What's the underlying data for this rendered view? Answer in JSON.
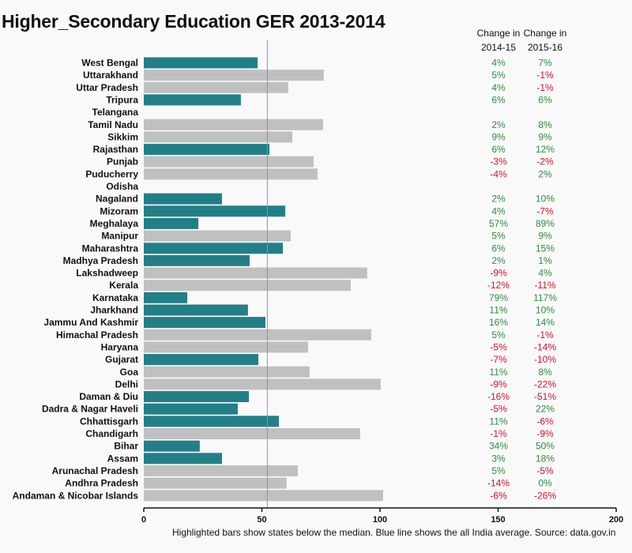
{
  "chart_data": {
    "type": "bar",
    "orientation": "horizontal",
    "title": "Higher_Secondary Education GER 2013-2014",
    "xlabel": "",
    "ylabel": "",
    "xlim": [
      0,
      200
    ],
    "xticks": [
      0,
      50,
      100,
      150,
      200
    ],
    "grid": false,
    "reference_line": {
      "label": "All India average",
      "value": 52.3,
      "color": "#8a8ae6"
    },
    "colors": {
      "below_median": "#237f87",
      "other": "#c0c0c0",
      "positive_change": "#2e8b3e",
      "negative_change": "#d0122c"
    },
    "categories": [
      "West Bengal",
      "Uttarakhand",
      "Uttar Pradesh",
      "Tripura",
      "Telangana",
      "Tamil Nadu",
      "Sikkim",
      "Rajasthan",
      "Punjab",
      "Puducherry",
      "Odisha",
      "Nagaland",
      "Mizoram",
      "Meghalaya",
      "Manipur",
      "Maharashtra",
      "Madhya Pradesh",
      "Lakshadweep",
      "Kerala",
      "Karnataka",
      "Jharkhand",
      "Jammu And Kashmir",
      "Himachal Pradesh",
      "Haryana",
      "Gujarat",
      "Goa",
      "Delhi",
      "Daman & Diu",
      "Dadra & Nagar Haveli",
      "Chhattisgarh",
      "Chandigarh",
      "Bihar",
      "Assam",
      "Arunachal Pradesh",
      "Andhra Pradesh",
      "Andaman & Nicobar Islands"
    ],
    "values": [
      48.2,
      76.2,
      61.2,
      41.1,
      null,
      75.9,
      62.9,
      53.2,
      71.9,
      73.6,
      null,
      33.1,
      59.9,
      23.1,
      62.2,
      58.9,
      44.8,
      94.6,
      87.6,
      18.4,
      44.1,
      51.5,
      96.3,
      69.6,
      48.5,
      70.2,
      100.3,
      44.5,
      39.8,
      57.2,
      91.6,
      23.7,
      33.1,
      65.2,
      60.5,
      101.3
    ],
    "highlighted": [
      true,
      false,
      false,
      true,
      false,
      false,
      false,
      true,
      false,
      false,
      false,
      true,
      true,
      true,
      false,
      true,
      true,
      false,
      false,
      true,
      true,
      true,
      false,
      false,
      true,
      false,
      false,
      true,
      true,
      true,
      false,
      true,
      true,
      false,
      false,
      false
    ],
    "table_columns": [
      {
        "header_line1": "Change in",
        "header_line2": "2014-15",
        "values": [
          "4%",
          "5%",
          "4%",
          "6%",
          "",
          "2%",
          "9%",
          "6%",
          "-3%",
          "-4%",
          "",
          "2%",
          "4%",
          "57%",
          "5%",
          "6%",
          "2%",
          "-9%",
          "-12%",
          "79%",
          "11%",
          "16%",
          "5%",
          "-5%",
          "-7%",
          "11%",
          "-9%",
          "-16%",
          "-5%",
          "11%",
          "-1%",
          "34%",
          "3%",
          "5%",
          "-14%",
          "-6%"
        ]
      },
      {
        "header_line1": "Change in",
        "header_line2": "2015-16",
        "values": [
          "7%",
          "-1%",
          "-1%",
          "6%",
          "",
          "8%",
          "9%",
          "12%",
          "-2%",
          "2%",
          "",
          "10%",
          "-7%",
          "89%",
          "9%",
          "15%",
          "1%",
          "4%",
          "-11%",
          "117%",
          "10%",
          "14%",
          "-1%",
          "-14%",
          "-10%",
          "8%",
          "-22%",
          "-51%",
          "22%",
          "-6%",
          "-9%",
          "50%",
          "18%",
          "-5%",
          "0%",
          "-26%"
        ]
      }
    ],
    "caption": "Highlighted bars show states below the median. Blue line shows the all India average. Source: data.gov.in"
  }
}
